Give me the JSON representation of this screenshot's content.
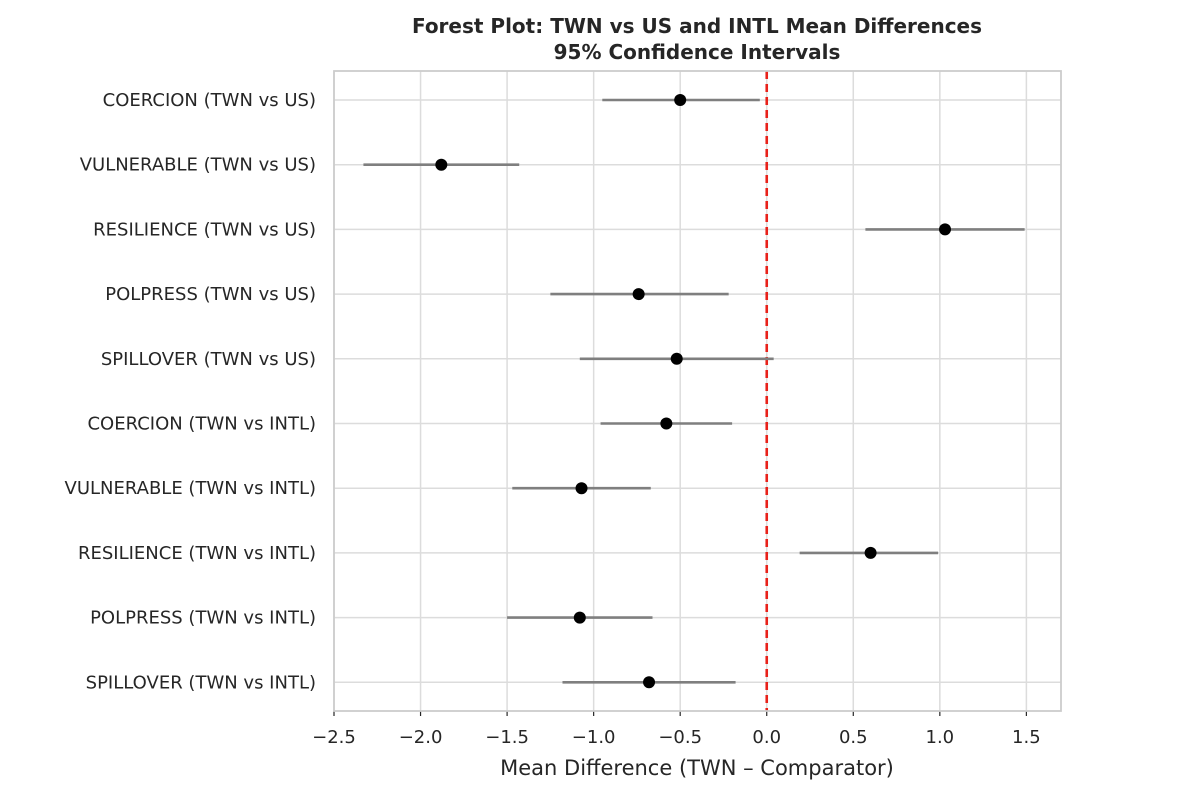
{
  "chart_data": {
    "type": "forest",
    "title_line1": "Forest Plot: TWN vs US and INTL Mean Differences",
    "title_line2": "95% Confidence Intervals",
    "xlabel": "Mean Difference (TWN – Comparator)",
    "xlim": [
      -2.5,
      1.7
    ],
    "xticks": [
      -2.5,
      -2.0,
      -1.5,
      -1.0,
      -0.5,
      0.0,
      0.5,
      1.0,
      1.5
    ],
    "xtick_labels": [
      "−2.5",
      "−2.0",
      "−1.5",
      "−1.0",
      "−0.5",
      "0.0",
      "0.5",
      "1.0",
      "1.5"
    ],
    "reference_line": 0.0,
    "reference_color": "#e8211a",
    "rows": [
      {
        "label": "COERCION (TWN vs US)",
        "estimate": -0.5,
        "lower": -0.95,
        "upper": -0.04
      },
      {
        "label": "VULNERABLE (TWN vs US)",
        "estimate": -1.88,
        "lower": -2.33,
        "upper": -1.43
      },
      {
        "label": "RESILIENCE (TWN vs US)",
        "estimate": 1.03,
        "lower": 0.57,
        "upper": 1.49
      },
      {
        "label": "POLPRESS (TWN vs US)",
        "estimate": -0.74,
        "lower": -1.25,
        "upper": -0.22
      },
      {
        "label": "SPILLOVER (TWN vs US)",
        "estimate": -0.52,
        "lower": -1.08,
        "upper": 0.04
      },
      {
        "label": "COERCION (TWN vs INTL)",
        "estimate": -0.58,
        "lower": -0.96,
        "upper": -0.2
      },
      {
        "label": "VULNERABLE (TWN vs INTL)",
        "estimate": -1.07,
        "lower": -1.47,
        "upper": -0.67
      },
      {
        "label": "RESILIENCE (TWN vs INTL)",
        "estimate": 0.6,
        "lower": 0.19,
        "upper": 0.99
      },
      {
        "label": "POLPRESS (TWN vs INTL)",
        "estimate": -1.08,
        "lower": -1.5,
        "upper": -0.66
      },
      {
        "label": "SPILLOVER (TWN vs INTL)",
        "estimate": -0.68,
        "lower": -1.18,
        "upper": -0.18
      }
    ]
  }
}
